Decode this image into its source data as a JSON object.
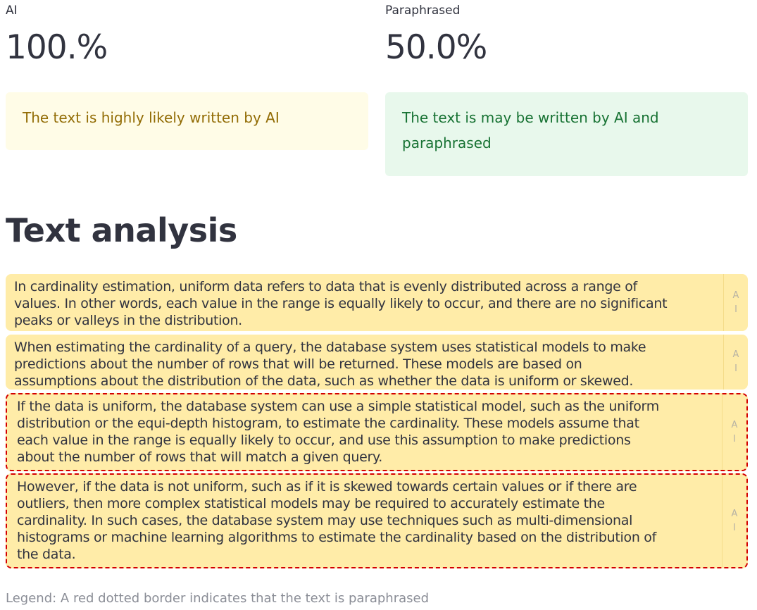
{
  "metrics": [
    {
      "label": "AI",
      "value": "100.%"
    },
    {
      "label": "Paraphrased",
      "value": "50.0%"
    }
  ],
  "alerts": {
    "ai": "The text is highly likely written by AI",
    "paraphrased_line1": "The text is may be written by AI and",
    "paraphrased_line2": "paraphrased",
    "colors": {
      "warning_bg": "#fffce7",
      "warning_text": "#926c05",
      "success_bg": "#e8f8ec",
      "success_text": "#177233"
    }
  },
  "analysis": {
    "title": "Text analysis",
    "paragraphs": [
      {
        "lines": [
          "In cardinality estimation, uniform data refers to data that is evenly distributed across a range of",
          "values. In other words, each value in the range is equally likely to occur, and there are no significant",
          "peaks or valleys in the distribution."
        ],
        "tag_1": "A",
        "tag_2": "I",
        "paraphrased": false
      },
      {
        "lines": [
          "When estimating the cardinality of a query, the database system uses statistical models to make",
          "predictions about the number of rows that will be returned. These models are based on",
          "assumptions about the distribution of the data, such as whether the data is uniform or skewed."
        ],
        "tag_1": "A",
        "tag_2": "I",
        "paraphrased": false
      },
      {
        "lines": [
          "If the data is uniform, the database system can use a simple statistical model, such as the uniform",
          "distribution or the equi-depth histogram, to estimate the cardinality. These models assume that",
          "each value in the range is equally likely to occur, and use this assumption to make predictions",
          "about the number of rows that will match a given query."
        ],
        "tag_1": "A",
        "tag_2": "I",
        "paraphrased": true
      },
      {
        "lines": [
          "However, if the data is not uniform, such as if it is skewed towards certain values or if there are",
          "outliers, then more complex statistical models may be required to accurately estimate the",
          "cardinality. In such cases, the database system may use techniques such as multi-dimensional",
          "histograms or machine learning algorithms to estimate the cardinality based on the distribution of",
          "the data."
        ],
        "tag_1": "A",
        "tag_2": "I",
        "paraphrased": true
      }
    ],
    "colors": {
      "highlight": "#ffeca8",
      "paraphrase_border": "#d30000"
    }
  },
  "legend": "Legend: A red dotted border indicates that the text is paraphrased"
}
